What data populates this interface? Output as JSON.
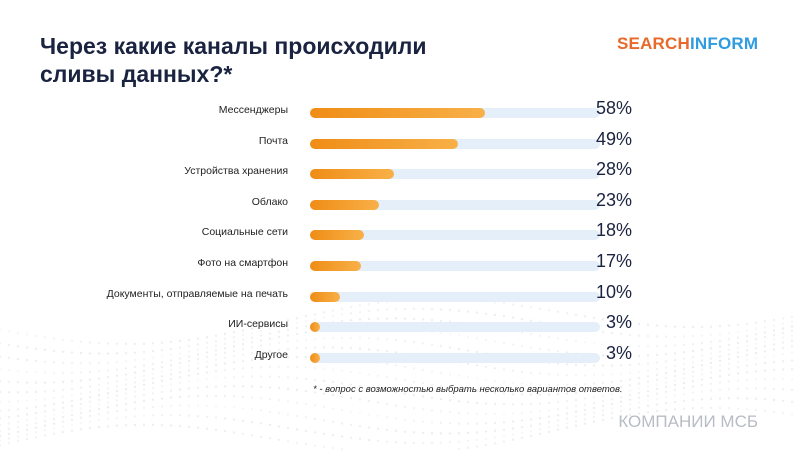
{
  "chart_data": {
    "type": "bar",
    "orientation": "horizontal",
    "title": "Через какие каналы происходили сливы данных?*",
    "categories": [
      "Мессенджеры",
      "Почта",
      "Устройства хранения",
      "Облако",
      "Социальные сети",
      "Фото на смартфон",
      "Документы, отправляемые на печать",
      "ИИ-сервисы",
      "Другое"
    ],
    "values": [
      58,
      49,
      28,
      23,
      18,
      17,
      10,
      3,
      3
    ],
    "value_labels": [
      "58%",
      "49%",
      "28%",
      "23%",
      "18%",
      "17%",
      "10%",
      "3%",
      "3%"
    ],
    "xlim": [
      0,
      100
    ],
    "bar_color": "#f29a22",
    "track_color": "#e4eff9",
    "footnote": "* - вопрос с возможностью выбрать несколько вариантов ответов."
  },
  "logo": {
    "part1": "SEARCH",
    "part2": "INFORM"
  },
  "footer": "КОМПАНИИ МСБ"
}
